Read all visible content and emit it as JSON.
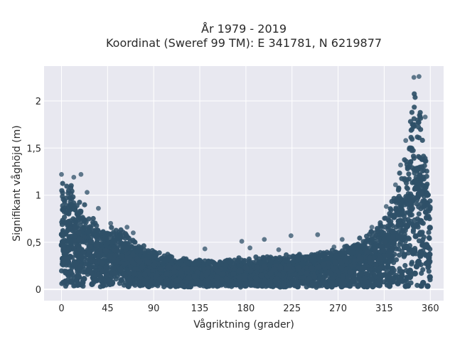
{
  "chart_data": {
    "type": "scatter",
    "title_line1": "År 1979 - 2019",
    "title_line2": "Koordinat (Sweref 99 TM): E 341781, N 6219877",
    "xlabel": "Vågriktning (grader)",
    "ylabel": "Signifikant våghöjd (m)",
    "xlim": [
      -17,
      373
    ],
    "ylim": [
      -0.12,
      2.37
    ],
    "x_ticks": [
      {
        "value": 0,
        "label": "0"
      },
      {
        "value": 45,
        "label": "45"
      },
      {
        "value": 90,
        "label": "90"
      },
      {
        "value": 135,
        "label": "135"
      },
      {
        "value": 180,
        "label": "180"
      },
      {
        "value": 225,
        "label": "225"
      },
      {
        "value": 270,
        "label": "270"
      },
      {
        "value": 315,
        "label": "315"
      },
      {
        "value": 360,
        "label": "360"
      }
    ],
    "y_ticks": [
      {
        "value": 0,
        "label": "0"
      },
      {
        "value": 0.5,
        "label": "0,5"
      },
      {
        "value": 1,
        "label": "1"
      },
      {
        "value": 1.5,
        "label": "1,5"
      },
      {
        "value": 2,
        "label": "2"
      }
    ],
    "grid": true,
    "colors": {
      "marker": "#2f5068",
      "plot_bg": "#e8e8f0",
      "grid": "#ffffff"
    },
    "envelope": [
      {
        "x": 0,
        "y": 1.2
      },
      {
        "x": 5,
        "y": 1.22
      },
      {
        "x": 10,
        "y": 1.18
      },
      {
        "x": 15,
        "y": 1.05
      },
      {
        "x": 20,
        "y": 0.95
      },
      {
        "x": 30,
        "y": 0.8
      },
      {
        "x": 45,
        "y": 0.68
      },
      {
        "x": 60,
        "y": 0.65
      },
      {
        "x": 70,
        "y": 0.58
      },
      {
        "x": 80,
        "y": 0.48
      },
      {
        "x": 90,
        "y": 0.42
      },
      {
        "x": 110,
        "y": 0.36
      },
      {
        "x": 135,
        "y": 0.33
      },
      {
        "x": 160,
        "y": 0.32
      },
      {
        "x": 180,
        "y": 0.35
      },
      {
        "x": 200,
        "y": 0.36
      },
      {
        "x": 225,
        "y": 0.38
      },
      {
        "x": 250,
        "y": 0.4
      },
      {
        "x": 270,
        "y": 0.45
      },
      {
        "x": 290,
        "y": 0.55
      },
      {
        "x": 300,
        "y": 0.62
      },
      {
        "x": 315,
        "y": 0.8
      },
      {
        "x": 325,
        "y": 1.05
      },
      {
        "x": 335,
        "y": 1.5
      },
      {
        "x": 340,
        "y": 1.9
      },
      {
        "x": 345,
        "y": 2.25
      },
      {
        "x": 350,
        "y": 2.1
      },
      {
        "x": 355,
        "y": 1.6
      },
      {
        "x": 360,
        "y": 1.0
      }
    ],
    "outliers": [
      {
        "x": 0,
        "y": 1.22
      },
      {
        "x": 19,
        "y": 1.22
      },
      {
        "x": 12,
        "y": 1.19
      },
      {
        "x": 25,
        "y": 1.03
      },
      {
        "x": 36,
        "y": 0.86
      },
      {
        "x": 48,
        "y": 0.7
      },
      {
        "x": 64,
        "y": 0.66
      },
      {
        "x": 70,
        "y": 0.6
      },
      {
        "x": 140,
        "y": 0.43
      },
      {
        "x": 176,
        "y": 0.51
      },
      {
        "x": 184,
        "y": 0.44
      },
      {
        "x": 198,
        "y": 0.53
      },
      {
        "x": 212,
        "y": 0.42
      },
      {
        "x": 224,
        "y": 0.57
      },
      {
        "x": 250,
        "y": 0.58
      },
      {
        "x": 266,
        "y": 0.45
      },
      {
        "x": 274,
        "y": 0.53
      },
      {
        "x": 286,
        "y": 0.47
      },
      {
        "x": 303,
        "y": 0.66
      },
      {
        "x": 317,
        "y": 0.88
      },
      {
        "x": 326,
        "y": 1.11
      },
      {
        "x": 331,
        "y": 1.32
      },
      {
        "x": 336,
        "y": 1.58
      },
      {
        "x": 344,
        "y": 2.25
      },
      {
        "x": 349,
        "y": 2.26
      },
      {
        "x": 355,
        "y": 1.83
      },
      {
        "x": 358,
        "y": 1.0
      }
    ]
  }
}
